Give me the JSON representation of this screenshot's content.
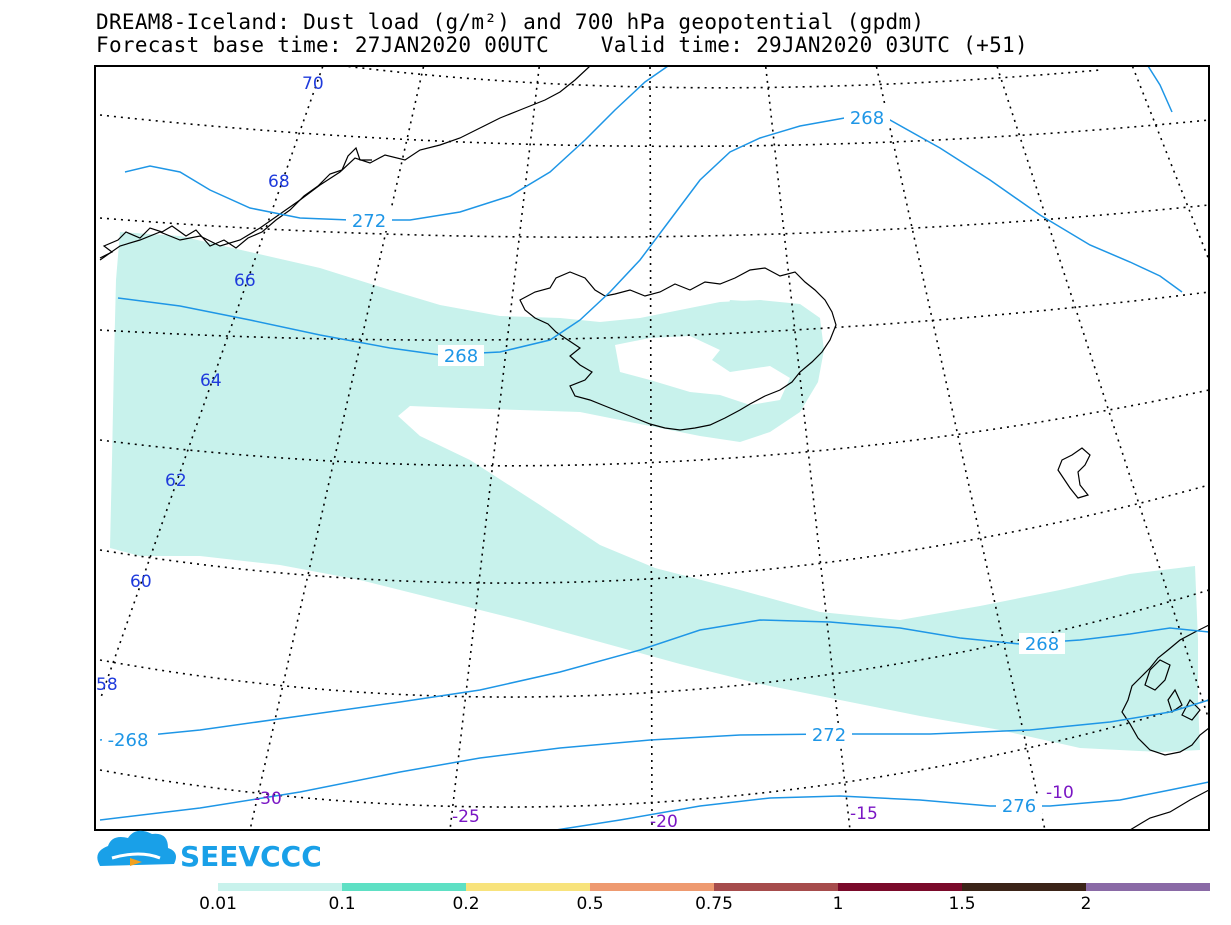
{
  "title_line1": "DREAM8-Iceland: Dust load (g/m²) and 700 hPa geopotential (gpdm)",
  "title_line2": "Forecast base time: 27JAN2020 00UTC    Valid time: 29JAN2020 03UTC (+51)",
  "logo_text": "SEEVCCC",
  "colors": {
    "dust": "#c8f2ec",
    "contour": "#1e96e6",
    "lat_label": "#1f3bdc",
    "lon_label": "#7a16c4",
    "coast": "#000000"
  },
  "lat_labels": [
    "70",
    "68",
    "66",
    "64",
    "62",
    "60",
    "58"
  ],
  "lon_labels": [
    "-30",
    "-25",
    "-20",
    "-15",
    "-10"
  ],
  "contour_labels": [
    "268",
    "272",
    "268",
    "268",
    "-268",
    "272",
    "276"
  ],
  "legend": {
    "colors": [
      "#c8f2ec",
      "#5ee0c4",
      "#f8e37c",
      "#ee9a70",
      "#a64c4c",
      "#7a0a2a",
      "#3b2418",
      "#8a6aa6"
    ],
    "labels": [
      "0.01",
      "0.1",
      "0.2",
      "0.5",
      "0.75",
      "1",
      "1.5",
      "2"
    ]
  }
}
